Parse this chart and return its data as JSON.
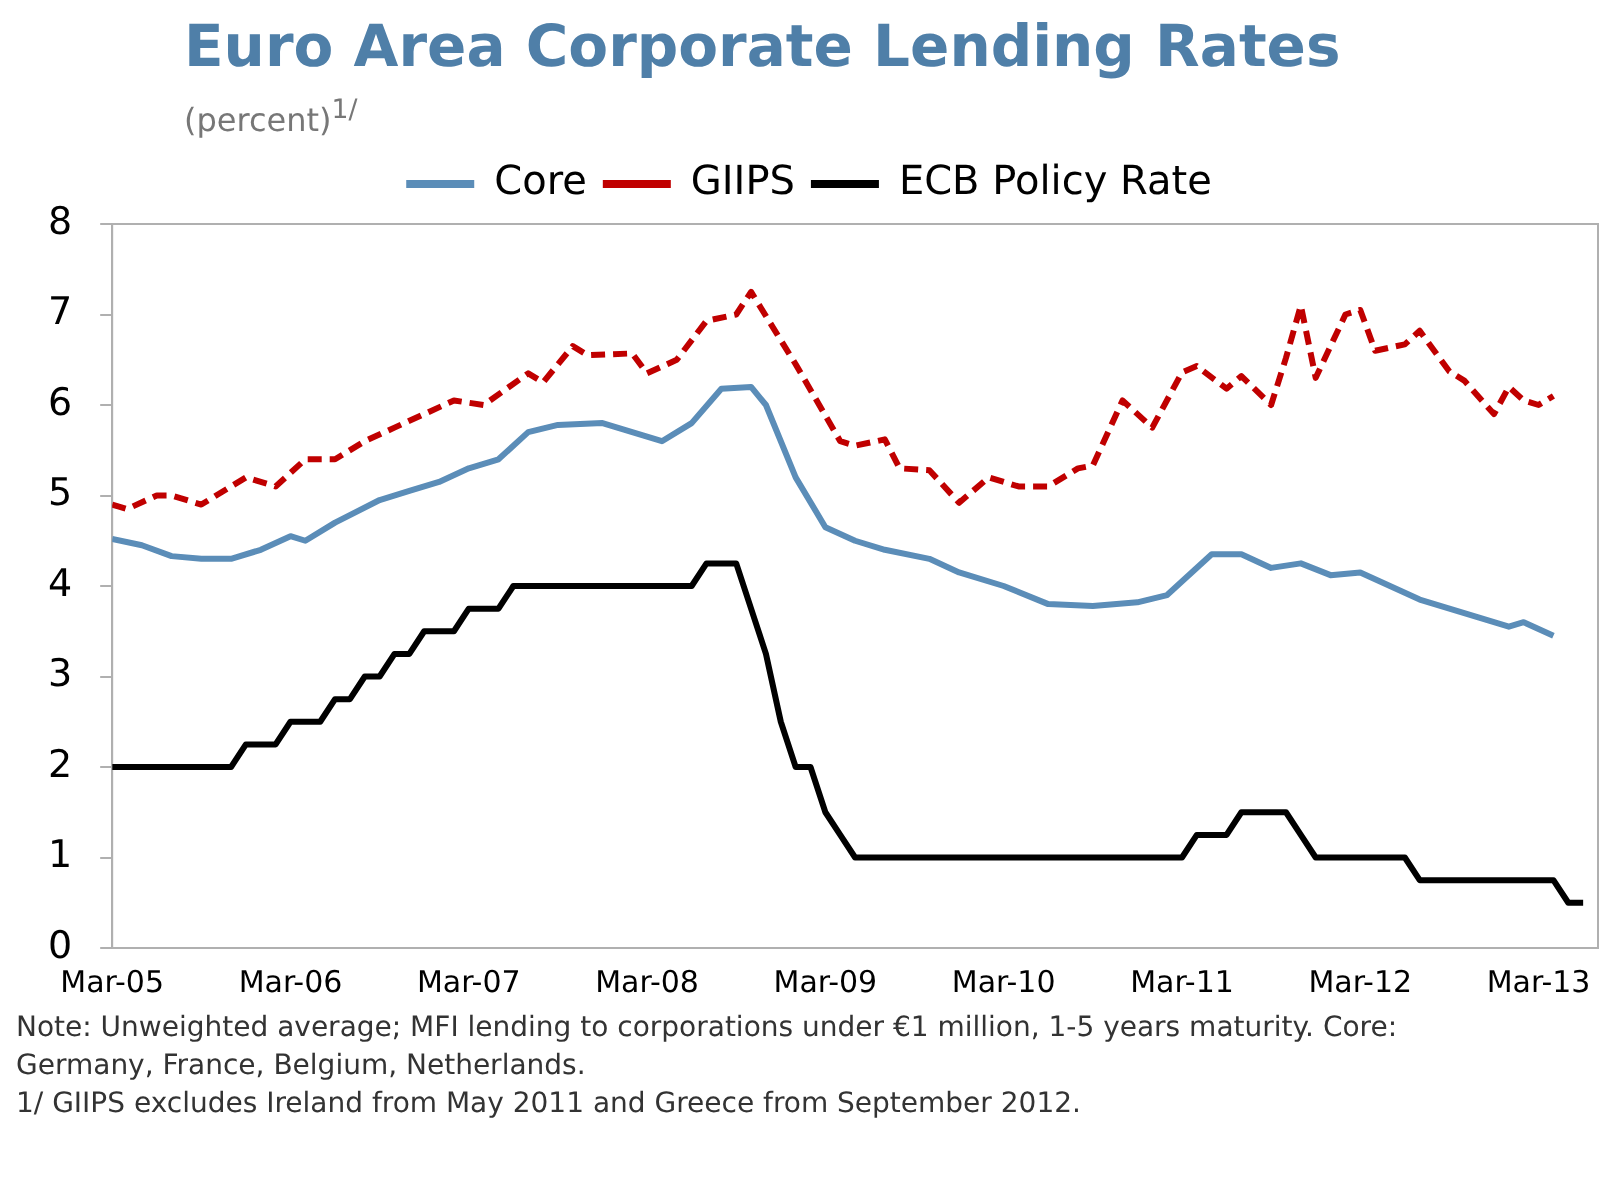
{
  "chart_data": {
    "type": "line",
    "title": "Euro Area Corporate Lending Rates",
    "subtitle": "(percent)$^{1/}$",
    "ylim": [
      0,
      8
    ],
    "yticks": [
      0,
      1,
      2,
      3,
      4,
      5,
      6,
      7,
      8
    ],
    "xlim": [
      "2005-03",
      "2013-07"
    ],
    "xticks": [
      {
        "value": "2005-03",
        "label": "Mar-05"
      },
      {
        "value": "2006-03",
        "label": "Mar-06"
      },
      {
        "value": "2007-03",
        "label": "Mar-07"
      },
      {
        "value": "2008-03",
        "label": "Mar-08"
      },
      {
        "value": "2009-03",
        "label": "Mar-09"
      },
      {
        "value": "2010-03",
        "label": "Mar-10"
      },
      {
        "value": "2011-03",
        "label": "Mar-11"
      },
      {
        "value": "2012-03",
        "label": "Mar-12"
      },
      {
        "value": "2013-03",
        "label": "Mar-13"
      }
    ],
    "grid": false,
    "legend": "top",
    "marker": "none",
    "series": [
      {
        "name": "Core",
        "color": "#5b8db8",
        "line_style": "solid",
        "x": [
          "2005-03",
          "2005-05",
          "2005-07",
          "2005-09",
          "2005-11",
          "2006-01",
          "2006-03",
          "2006-04",
          "2006-06",
          "2006-09",
          "2006-11",
          "2007-01",
          "2007-03",
          "2007-05",
          "2007-07",
          "2007-09",
          "2007-12",
          "2008-02",
          "2008-04",
          "2008-06",
          "2008-08",
          "2008-10",
          "2008-11",
          "2009-01",
          "2009-03",
          "2009-05",
          "2009-07",
          "2009-10",
          "2009-12",
          "2010-03",
          "2010-06",
          "2010-09",
          "2010-12",
          "2011-02",
          "2011-05",
          "2011-07",
          "2011-09",
          "2011-11",
          "2012-01",
          "2012-03",
          "2012-05",
          "2012-07",
          "2012-09",
          "2012-11",
          "2013-01",
          "2013-02",
          "2013-04"
        ],
        "values": [
          4.52,
          4.45,
          4.33,
          4.3,
          4.3,
          4.4,
          4.55,
          4.5,
          4.7,
          4.95,
          5.05,
          5.15,
          5.3,
          5.4,
          5.7,
          5.78,
          5.8,
          5.7,
          5.6,
          5.8,
          6.18,
          6.2,
          6.0,
          5.2,
          4.65,
          4.5,
          4.4,
          4.3,
          4.15,
          4.0,
          3.8,
          3.78,
          3.82,
          3.9,
          4.35,
          4.35,
          4.2,
          4.25,
          4.12,
          4.15,
          4.0,
          3.85,
          3.75,
          3.65,
          3.55,
          3.6,
          3.45
        ]
      },
      {
        "name": "GIIPS",
        "color": "#c00000",
        "line_style": "dashed",
        "x": [
          "2005-03",
          "2005-04",
          "2005-06",
          "2005-07",
          "2005-09",
          "2005-12",
          "2006-02",
          "2006-04",
          "2006-06",
          "2006-08",
          "2006-10",
          "2006-12",
          "2007-02",
          "2007-04",
          "2007-07",
          "2007-08",
          "2007-10",
          "2007-11",
          "2008-02",
          "2008-03",
          "2008-05",
          "2008-07",
          "2008-09",
          "2008-10",
          "2009-01",
          "2009-04",
          "2009-05",
          "2009-07",
          "2009-08",
          "2009-10",
          "2009-12",
          "2010-02",
          "2010-04",
          "2010-06",
          "2010-08",
          "2010-09",
          "2010-11",
          "2011-01",
          "2011-03",
          "2011-04",
          "2011-06",
          "2011-07",
          "2011-09",
          "2011-10",
          "2011-11",
          "2011-12",
          "2012-02",
          "2012-03",
          "2012-04",
          "2012-06",
          "2012-07",
          "2012-09",
          "2012-10",
          "2012-12",
          "2013-01",
          "2013-02",
          "2013-03",
          "2013-04"
        ],
        "values": [
          4.9,
          4.85,
          5.0,
          5.0,
          4.9,
          5.2,
          5.1,
          5.4,
          5.4,
          5.6,
          5.75,
          5.9,
          6.05,
          6.0,
          6.35,
          6.25,
          6.65,
          6.55,
          6.57,
          6.35,
          6.5,
          6.93,
          7.0,
          7.25,
          6.45,
          5.6,
          5.55,
          5.62,
          5.3,
          5.28,
          4.92,
          5.2,
          5.1,
          5.1,
          5.3,
          5.33,
          6.05,
          5.75,
          6.36,
          6.43,
          6.18,
          6.32,
          6.0,
          6.52,
          7.1,
          6.3,
          7.0,
          7.05,
          6.6,
          6.67,
          6.82,
          6.37,
          6.27,
          5.9,
          6.2,
          6.05,
          6.0,
          6.1
        ]
      },
      {
        "name": "ECB Policy Rate",
        "color": "#000000",
        "line_style": "solid",
        "x": [
          "2005-03",
          "2005-11",
          "2005-12",
          "2006-02",
          "2006-03",
          "2006-05",
          "2006-06",
          "2006-07",
          "2006-08",
          "2006-09",
          "2006-10",
          "2006-11",
          "2006-12",
          "2007-02",
          "2007-03",
          "2007-05",
          "2007-06",
          "2008-06",
          "2008-07",
          "2008-09",
          "2008-10",
          "2008-11",
          "2008-12",
          "2009-01",
          "2009-02",
          "2009-03",
          "2009-04",
          "2009-05",
          "2011-03",
          "2011-04",
          "2011-06",
          "2011-07",
          "2011-10",
          "2011-11",
          "2011-12",
          "2012-06",
          "2012-07",
          "2013-04",
          "2013-05",
          "2013-06"
        ],
        "values": [
          2,
          2,
          2.25,
          2.25,
          2.5,
          2.5,
          2.75,
          2.75,
          3,
          3,
          3.25,
          3.25,
          3.5,
          3.5,
          3.75,
          3.75,
          4,
          4,
          4.25,
          4.25,
          3.75,
          3.25,
          2.5,
          2,
          2,
          1.5,
          1.25,
          1,
          1,
          1.25,
          1.25,
          1.5,
          1.5,
          1.25,
          1,
          1,
          0.75,
          0.75,
          0.5,
          0.5
        ]
      }
    ],
    "annotations": [
      "Note: Unweighted average; MFI lending to corporations under €1 million, 1-5 years maturity. Core: Germany, France, Belgium, Netherlands.",
      "1/ GIIPS excludes Ireland from May 2011 and Greece from September 2012."
    ]
  }
}
